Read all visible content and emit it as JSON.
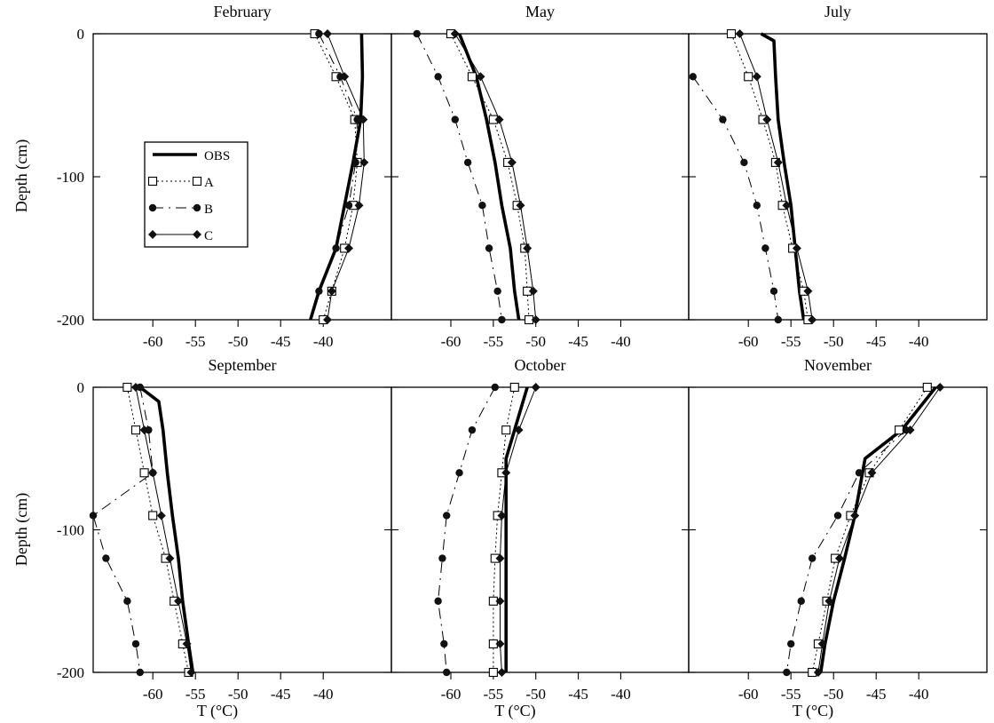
{
  "figure": {
    "y_axis_label": "Depth (cm)",
    "x_axis_label": "T (°C)"
  },
  "legend": [
    {
      "label": "OBS",
      "style": "thick"
    },
    {
      "label": "A",
      "style": "dotted-square"
    },
    {
      "label": "B",
      "style": "dash-dot-circle"
    },
    {
      "label": "C",
      "style": "thin-diamond"
    }
  ],
  "chart_data": [
    {
      "type": "line",
      "title": "February",
      "xlabel": "",
      "ylabel": "Depth (cm)",
      "xlim": [
        -67,
        -32
      ],
      "ylim": [
        -200,
        0
      ],
      "xticks": [
        -60,
        -55,
        -50,
        -45,
        -40
      ],
      "yticks": [
        0,
        -100,
        -200
      ],
      "series": [
        {
          "name": "OBS",
          "depth": [
            0,
            -30,
            -60,
            -90,
            -120,
            -150,
            -180,
            -200
          ],
          "temp": [
            -35.5,
            -35.4,
            -35.6,
            -36.5,
            -37.5,
            -38.5,
            -40.5,
            -41.5
          ]
        },
        {
          "name": "A",
          "depth": [
            0,
            -30,
            -60,
            -90,
            -120,
            -150,
            -180,
            -200
          ],
          "temp": [
            -41.0,
            -38.5,
            -36.3,
            -36.0,
            -36.5,
            -37.5,
            -39.0,
            -40.0
          ]
        },
        {
          "name": "B",
          "depth": [
            0,
            -30,
            -60,
            -90,
            -120,
            -150,
            -180
          ],
          "temp": [
            -40.5,
            -38.0,
            -36.0,
            -36.2,
            -37.0,
            -38.5,
            -40.5
          ]
        },
        {
          "name": "C",
          "depth": [
            0,
            -30,
            -60,
            -90,
            -120,
            -150,
            -180,
            -200
          ],
          "temp": [
            -39.5,
            -37.5,
            -35.3,
            -35.2,
            -35.8,
            -37.0,
            -39.0,
            -39.5
          ]
        }
      ]
    },
    {
      "type": "line",
      "title": "May",
      "xlabel": "",
      "ylabel": "",
      "xlim": [
        -67,
        -32
      ],
      "ylim": [
        -200,
        0
      ],
      "xticks": [
        -60,
        -55,
        -50,
        -45,
        -40
      ],
      "yticks": [
        0,
        -100,
        -200
      ],
      "series": [
        {
          "name": "OBS",
          "depth": [
            0,
            -30,
            -60,
            -90,
            -120,
            -150,
            -180,
            -200
          ],
          "temp": [
            -59.0,
            -57.0,
            -55.8,
            -54.8,
            -54.0,
            -53.0,
            -52.5,
            -52.0
          ]
        },
        {
          "name": "A",
          "depth": [
            0,
            -30,
            -60,
            -90,
            -120,
            -150,
            -180,
            -200
          ],
          "temp": [
            -60.0,
            -57.5,
            -55.0,
            -53.3,
            -52.2,
            -51.3,
            -51.0,
            -50.8
          ]
        },
        {
          "name": "B",
          "depth": [
            0,
            -30,
            -60,
            -90,
            -120,
            -150,
            -180,
            -200
          ],
          "temp": [
            -64.0,
            -61.5,
            -59.5,
            -58.0,
            -56.3,
            -55.5,
            -54.5,
            -54.0
          ]
        },
        {
          "name": "C",
          "depth": [
            0,
            -30,
            -60,
            -90,
            -120,
            -150,
            -180,
            -200
          ],
          "temp": [
            -59.5,
            -56.5,
            -54.3,
            -52.8,
            -51.8,
            -51.0,
            -50.3,
            -50.0
          ]
        }
      ]
    },
    {
      "type": "line",
      "title": "July",
      "xlabel": "",
      "ylabel": "",
      "xlim": [
        -67,
        -32
      ],
      "ylim": [
        -200,
        0
      ],
      "xticks": [
        -60,
        -55,
        -50,
        -45,
        -40
      ],
      "yticks": [
        0,
        -100,
        -200
      ],
      "series": [
        {
          "name": "OBS",
          "depth": [
            0,
            -5,
            -30,
            -60,
            -90,
            -120,
            -150,
            -180,
            -200
          ],
          "temp": [
            -58.5,
            -57.0,
            -56.8,
            -56.5,
            -55.8,
            -55.0,
            -54.5,
            -54.0,
            -53.5
          ]
        },
        {
          "name": "A",
          "depth": [
            0,
            -30,
            -60,
            -90,
            -120,
            -150,
            -180,
            -200
          ],
          "temp": [
            -62.0,
            -60.0,
            -58.3,
            -56.8,
            -56.0,
            -54.8,
            -53.5,
            -53.0
          ]
        },
        {
          "name": "B",
          "depth": [
            -30,
            -60,
            -90,
            -120,
            -150,
            -180,
            -200
          ],
          "temp": [
            -66.5,
            -63.0,
            -60.5,
            -59.0,
            -58.0,
            -57.0,
            -56.5
          ]
        },
        {
          "name": "C",
          "depth": [
            0,
            -30,
            -60,
            -90,
            -120,
            -150,
            -180,
            -200
          ],
          "temp": [
            -61.0,
            -59.0,
            -57.8,
            -56.5,
            -55.5,
            -54.3,
            -53.0,
            -52.5
          ]
        }
      ]
    },
    {
      "type": "line",
      "title": "September",
      "xlabel": "T (°C)",
      "ylabel": "Depth (cm)",
      "xlim": [
        -67,
        -32
      ],
      "ylim": [
        -200,
        0
      ],
      "xticks": [
        -60,
        -55,
        -50,
        -45,
        -40
      ],
      "yticks": [
        0,
        -100,
        -200
      ],
      "series": [
        {
          "name": "OBS",
          "depth": [
            0,
            -10,
            -30,
            -60,
            -90,
            -120,
            -150,
            -180,
            -200
          ],
          "temp": [
            -61.5,
            -59.3,
            -58.8,
            -58.3,
            -57.7,
            -57.0,
            -56.5,
            -55.8,
            -55.3
          ]
        },
        {
          "name": "A",
          "depth": [
            0,
            -30,
            -60,
            -90,
            -120,
            -150,
            -180,
            -200
          ],
          "temp": [
            -63.0,
            -62.0,
            -61.0,
            -60.0,
            -58.5,
            -57.5,
            -56.5,
            -55.8
          ]
        },
        {
          "name": "B",
          "depth": [
            0,
            -30,
            -60,
            -90,
            -120,
            -150,
            -180,
            -200
          ],
          "temp": [
            -61.5,
            -60.5,
            -60.0,
            -67.0,
            -65.5,
            -63.0,
            -62.0,
            -61.5
          ]
        },
        {
          "name": "C",
          "depth": [
            0,
            -30,
            -60,
            -90,
            -120,
            -150,
            -180,
            -200
          ],
          "temp": [
            -62.0,
            -61.0,
            -60.0,
            -59.0,
            -58.0,
            -57.0,
            -56.0,
            -55.5
          ]
        }
      ]
    },
    {
      "type": "line",
      "title": "October",
      "xlabel": "T (°C)",
      "ylabel": "",
      "xlim": [
        -67,
        -32
      ],
      "ylim": [
        -200,
        0
      ],
      "xticks": [
        -60,
        -55,
        -50,
        -45,
        -40
      ],
      "yticks": [
        0,
        -100,
        -200
      ],
      "series": [
        {
          "name": "OBS",
          "depth": [
            0,
            -30,
            -50,
            -90,
            -120,
            -150,
            -180,
            -200
          ],
          "temp": [
            -51.0,
            -52.5,
            -53.5,
            -53.5,
            -53.5,
            -53.5,
            -53.5,
            -53.5
          ]
        },
        {
          "name": "A",
          "depth": [
            0,
            -30,
            -60,
            -90,
            -120,
            -150,
            -180,
            -200
          ],
          "temp": [
            -52.5,
            -53.5,
            -54.0,
            -54.5,
            -54.8,
            -55.0,
            -55.0,
            -55.0
          ]
        },
        {
          "name": "B",
          "depth": [
            0,
            -30,
            -60,
            -90,
            -120,
            -150,
            -180,
            -200
          ],
          "temp": [
            -54.8,
            -57.5,
            -59.0,
            -60.5,
            -61.0,
            -61.5,
            -60.8,
            -60.5
          ]
        },
        {
          "name": "C",
          "depth": [
            0,
            -30,
            -60,
            -90,
            -120,
            -150,
            -180,
            -200
          ],
          "temp": [
            -50.0,
            -52.0,
            -53.5,
            -54.0,
            -54.2,
            -54.2,
            -54.2,
            -54.0
          ]
        }
      ]
    },
    {
      "type": "line",
      "title": "November",
      "xlabel": "T (°C)",
      "ylabel": "",
      "xlim": [
        -67,
        -32
      ],
      "ylim": [
        -200,
        0
      ],
      "xticks": [
        -60,
        -55,
        -50,
        -45,
        -40
      ],
      "yticks": [
        0,
        -100,
        -200
      ],
      "series": [
        {
          "name": "OBS",
          "depth": [
            0,
            -30,
            -50,
            -90,
            -120,
            -150,
            -180,
            -200
          ],
          "temp": [
            -38.0,
            -42.0,
            -46.3,
            -47.5,
            -48.7,
            -50.0,
            -51.0,
            -51.5
          ]
        },
        {
          "name": "A",
          "depth": [
            0,
            -30,
            -60,
            -90,
            -120,
            -150,
            -180,
            -200
          ],
          "temp": [
            -39.0,
            -42.3,
            -45.8,
            -48.0,
            -49.8,
            -50.8,
            -51.8,
            -52.5
          ]
        },
        {
          "name": "B",
          "depth": [
            -30,
            -60,
            -90,
            -120,
            -150,
            -180,
            -200
          ],
          "temp": [
            -41.5,
            -47.0,
            -49.5,
            -52.5,
            -53.8,
            -55.0,
            -55.5
          ]
        },
        {
          "name": "C",
          "depth": [
            0,
            -30,
            -60,
            -90,
            -120,
            -150,
            -180,
            -200
          ],
          "temp": [
            -37.5,
            -41.0,
            -45.5,
            -47.5,
            -49.3,
            -50.5,
            -51.3,
            -51.8
          ]
        }
      ]
    }
  ]
}
